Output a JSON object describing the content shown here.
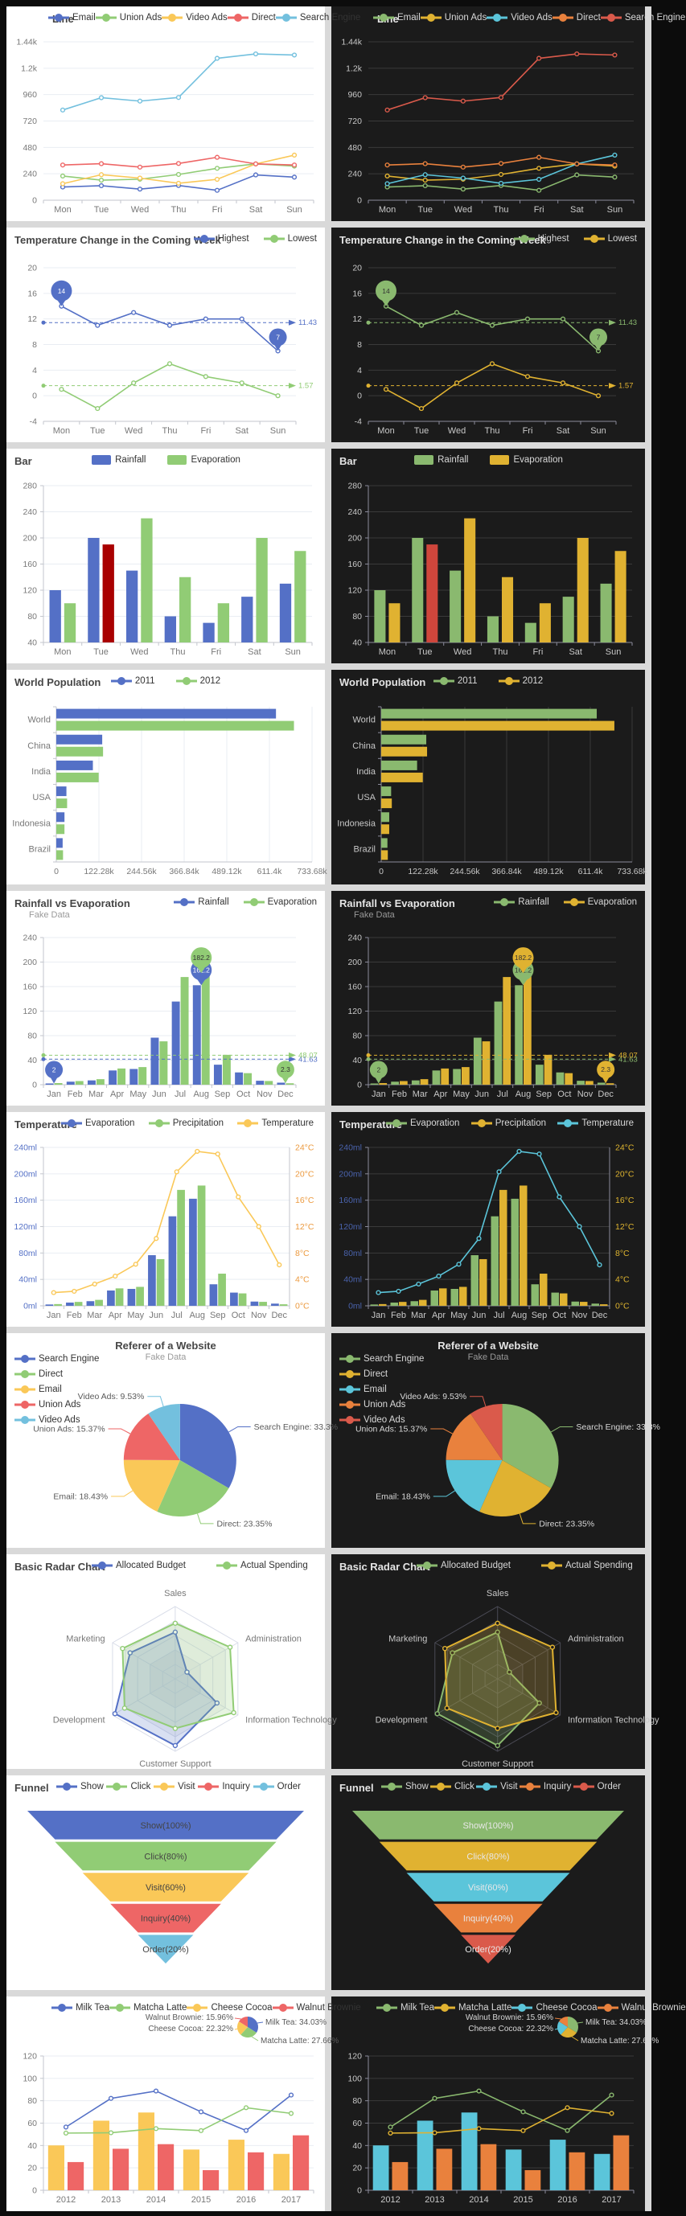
{
  "ui": {
    "page_bg": "#d9d9d9",
    "left_strip": "#0c0c0c",
    "themes": {
      "light": {
        "bg": "#ffffff",
        "title": "#464646",
        "subtitle": "#9a9a9a",
        "legend_text": "#333333",
        "axis_label": "#787878",
        "axis_line": "#c3c6cd",
        "grid": "#e9edf3",
        "pie_label": "#5a5a5a",
        "radar_ring": "#d8dce8",
        "palette": [
          "#5470c6",
          "#91cc75",
          "#fac858",
          "#ee6666",
          "#73c0de"
        ],
        "funnel_label": "#444444"
      },
      "dark": {
        "bg": "#1b1b1b",
        "title": "#e4e4e4",
        "subtitle": "#999999",
        "legend_text": "#d8d8d8",
        "axis_label": "#c8c8c8",
        "axis_line": "#8b8b9b",
        "grid": "#3a3a3a",
        "pie_label": "#d8d8d8",
        "radar_ring": "#4a4a55",
        "palette": [
          "#8ab96f",
          "#e0b231",
          "#5bc5da",
          "#e9813d",
          "#da5a4b"
        ],
        "funnel_label": "#e8e8e8"
      }
    }
  },
  "chart_data": {
    "note": "see charts array"
  },
  "charts": [
    {
      "id": "line",
      "kind": "xy",
      "type": "line",
      "title": "Line",
      "x_labels": [
        "Mon",
        "Tue",
        "Wed",
        "Thu",
        "Fri",
        "Sat",
        "Sun"
      ],
      "y_ticks": {
        "values": [
          0,
          240,
          480,
          720,
          960,
          1200,
          1440
        ],
        "labels": [
          "0",
          "240",
          "480",
          "720",
          "960",
          "1.2k",
          "1.44k"
        ]
      },
      "series": [
        {
          "name": "Email",
          "type": "line",
          "ci": 0,
          "values": [
            120,
            132,
            101,
            134,
            90,
            230,
            210
          ]
        },
        {
          "name": "Union Ads",
          "type": "line",
          "ci": 1,
          "values": [
            220,
            182,
            191,
            234,
            290,
            330,
            310
          ]
        },
        {
          "name": "Video Ads",
          "type": "line",
          "ci": 2,
          "values": [
            150,
            232,
            201,
            154,
            190,
            330,
            410
          ]
        },
        {
          "name": "Direct",
          "type": "line",
          "ci": 3,
          "values": [
            320,
            332,
            301,
            334,
            390,
            330,
            320
          ]
        },
        {
          "name": "Search Engine",
          "type": "line",
          "ci": 4,
          "values": [
            820,
            932,
            901,
            934,
            1290,
            1330,
            1320
          ]
        }
      ]
    },
    {
      "id": "week",
      "kind": "xy",
      "type": "line",
      "title": "Temperature Change in the Coming Week",
      "x_labels": [
        "Mon",
        "Tue",
        "Wed",
        "Thu",
        "Fri",
        "Sat",
        "Sun"
      ],
      "y_ticks": {
        "values": [
          -4,
          0,
          4,
          8,
          12,
          16,
          20
        ],
        "labels": [
          "-4",
          "0",
          "4",
          "8",
          "12",
          "16",
          "20"
        ]
      },
      "series": [
        {
          "name": "Highest",
          "type": "line",
          "ci": 0,
          "values": [
            14,
            11,
            13,
            11,
            12,
            12,
            7
          ],
          "markpoints": [
            {
              "xi": 0,
              "label": "14",
              "kind": "max"
            },
            {
              "xi": 6,
              "label": "7",
              "kind": "min"
            }
          ],
          "markline": {
            "value": 11.43,
            "label": "11.43"
          }
        },
        {
          "name": "Lowest",
          "type": "line",
          "ci": 1,
          "values": [
            1,
            -2,
            2,
            5,
            3,
            2,
            0
          ],
          "markline": {
            "value": 1.57,
            "label": "1.57"
          }
        }
      ]
    },
    {
      "id": "bar",
      "kind": "xy",
      "type": "bar",
      "title": "Bar",
      "x_labels": [
        "Mon",
        "Tue",
        "Wed",
        "Thu",
        "Fri",
        "Sat",
        "Sun"
      ],
      "y_ticks": {
        "values": [
          40,
          80,
          120,
          160,
          200,
          240,
          280
        ],
        "labels": [
          "40",
          "80",
          "120",
          "160",
          "200",
          "240",
          "280"
        ]
      },
      "series": [
        {
          "name": "Rainfall",
          "type": "bar",
          "ci": 0,
          "values": [
            120,
            200,
            150,
            80,
            70,
            110,
            130
          ]
        },
        {
          "name": "Evaporation",
          "type": "bar",
          "ci": 1,
          "values": [
            100,
            190,
            230,
            140,
            100,
            200,
            180
          ],
          "highlight_xi": 1,
          "highlight_color": {
            "light": "#a90000",
            "dark": "#d0463c"
          }
        }
      ]
    },
    {
      "id": "world",
      "kind": "hbar",
      "type": "bar",
      "title": "World Population",
      "categories": [
        "World",
        "China",
        "India",
        "USA",
        "Indonesia",
        "Brazil"
      ],
      "x_ticks": {
        "values": [
          0,
          122280,
          244560,
          366840,
          489120,
          611400,
          733680
        ],
        "labels": [
          "0",
          "122.28k",
          "244.56k",
          "366.84k",
          "489.12k",
          "611.4k",
          "733.68k"
        ]
      },
      "series": [
        {
          "name": "2011",
          "type": "bar",
          "ci": 0,
          "values": [
            630230,
            131744,
            104970,
            29034,
            23489,
            18203
          ]
        },
        {
          "name": "2012",
          "type": "bar",
          "ci": 1,
          "values": [
            681807,
            134141,
            121594,
            31000,
            23438,
            19325
          ]
        }
      ]
    },
    {
      "id": "rain",
      "kind": "xy",
      "type": "bar",
      "title": "Rainfall vs Evaporation",
      "subtitle": "Fake Data",
      "x_labels": [
        "Jan",
        "Feb",
        "Mar",
        "Apr",
        "May",
        "Jun",
        "Jul",
        "Aug",
        "Sep",
        "Oct",
        "Nov",
        "Dec"
      ],
      "y_ticks": {
        "values": [
          0,
          40,
          80,
          120,
          160,
          200,
          240
        ],
        "labels": [
          "0",
          "40",
          "80",
          "120",
          "160",
          "200",
          "240"
        ]
      },
      "series": [
        {
          "name": "Rainfall",
          "type": "bar",
          "ci": 0,
          "values": [
            2.0,
            4.9,
            7.0,
            23.2,
            25.6,
            76.7,
            135.6,
            162.2,
            32.6,
            20.0,
            6.4,
            3.3
          ],
          "markpoints": [
            {
              "xi": 7,
              "label": "162.2",
              "kind": "max"
            },
            {
              "xi": 0,
              "label": "2",
              "kind": "min"
            }
          ],
          "markline": {
            "value": 41.63,
            "label": "41.63"
          }
        },
        {
          "name": "Evaporation",
          "type": "bar",
          "ci": 1,
          "values": [
            2.6,
            5.9,
            9.0,
            26.4,
            28.7,
            70.7,
            175.6,
            182.2,
            48.7,
            18.8,
            6.0,
            2.3
          ],
          "markpoints": [
            {
              "xi": 7,
              "label": "182.2",
              "kind": "max"
            },
            {
              "xi": 11,
              "label": "2.3",
              "kind": "min"
            }
          ],
          "markline": {
            "value": 48.07,
            "label": "48.07"
          }
        }
      ]
    },
    {
      "id": "temp",
      "kind": "xy",
      "type": "mixed",
      "title": "Temperature",
      "x_labels": [
        "Jan",
        "Feb",
        "Mar",
        "Apr",
        "May",
        "Jun",
        "Jul",
        "Aug",
        "Sep",
        "Oct",
        "Nov",
        "Dec"
      ],
      "y_ticks": {
        "values": [
          0,
          40,
          80,
          120,
          160,
          200,
          240
        ],
        "labels": [
          "0ml",
          "40ml",
          "80ml",
          "120ml",
          "160ml",
          "200ml",
          "240ml"
        ]
      },
      "y2_ticks": {
        "values": [
          0,
          4,
          8,
          12,
          16,
          20,
          24
        ],
        "labels": [
          "0°C",
          "4°C",
          "8°C",
          "12°C",
          "16°C",
          "20°C",
          "24°C"
        ]
      },
      "y_label_color": {
        "light": "#5470c6",
        "dark": "#4a63ad"
      },
      "y2_label_color": {
        "light": "#ec9a3f",
        "dark": "#ddb32f"
      },
      "series": [
        {
          "name": "Evaporation",
          "type": "bar",
          "ci": 0,
          "values": [
            2.0,
            4.9,
            7.0,
            23.2,
            25.6,
            76.7,
            135.6,
            162.2,
            32.6,
            20.0,
            6.4,
            3.3
          ]
        },
        {
          "name": "Precipitation",
          "type": "bar",
          "ci": 1,
          "values": [
            2.6,
            5.9,
            9.0,
            26.4,
            28.7,
            70.7,
            175.6,
            182.2,
            48.7,
            18.8,
            6.0,
            2.3
          ]
        },
        {
          "name": "Temperature",
          "type": "line",
          "ci": 2,
          "y2": true,
          "values": [
            2.0,
            2.2,
            3.3,
            4.5,
            6.3,
            10.2,
            20.3,
            23.4,
            23.0,
            16.5,
            12.0,
            6.2
          ]
        }
      ]
    },
    {
      "id": "pie",
      "kind": "pie",
      "type": "pie",
      "title": "Referer of a Website",
      "subtitle": "Fake Data",
      "slices": [
        {
          "name": "Search Engine",
          "pct": 33.3,
          "label": "Search Engine: 33.3%",
          "ci": 0
        },
        {
          "name": "Direct",
          "pct": 23.35,
          "label": "Direct: 23.35%",
          "ci": 1
        },
        {
          "name": "Email",
          "pct": 18.43,
          "label": "Email: 18.43%",
          "ci": 2
        },
        {
          "name": "Union Ads",
          "pct": 15.37,
          "label": "Union Ads: 15.37%",
          "ci": 3
        },
        {
          "name": "Video Ads",
          "pct": 9.53,
          "label": "Video Ads: 9.53%",
          "ci": 4
        }
      ]
    },
    {
      "id": "radar",
      "kind": "radar",
      "type": "radar",
      "title": "Basic Radar Chart",
      "indicators": [
        {
          "name": "Sales",
          "max": 6500
        },
        {
          "name": "Administration",
          "max": 16000
        },
        {
          "name": "Information Technology",
          "max": 30000
        },
        {
          "name": "Customer Support",
          "max": 38000
        },
        {
          "name": "Development",
          "max": 52000
        },
        {
          "name": "Marketing",
          "max": 25000
        }
      ],
      "series": [
        {
          "name": "Allocated Budget",
          "ci": 0,
          "values": [
            4200,
            3000,
            20000,
            35000,
            50000,
            18000
          ]
        },
        {
          "name": "Actual Spending",
          "ci": 1,
          "values": [
            5000,
            14000,
            28000,
            26000,
            42000,
            21000
          ]
        }
      ]
    },
    {
      "id": "funnel",
      "kind": "funnel",
      "type": "funnel",
      "title": "Funnel",
      "bands": [
        {
          "name": "Show",
          "pct": 100,
          "label": "Show(100%)",
          "ci": 0
        },
        {
          "name": "Click",
          "pct": 80,
          "label": "Click(80%)",
          "ci": 1
        },
        {
          "name": "Visit",
          "pct": 60,
          "label": "Visit(60%)",
          "ci": 2
        },
        {
          "name": "Inquiry",
          "pct": 40,
          "label": "Inquiry(40%)",
          "ci": 3
        },
        {
          "name": "Order",
          "pct": 20,
          "label": "Order(20%)",
          "ci": 4
        }
      ]
    },
    {
      "id": "mix",
      "kind": "xy",
      "type": "mixed",
      "title": "",
      "x_labels": [
        "2012",
        "2013",
        "2014",
        "2015",
        "2016",
        "2017"
      ],
      "y_ticks": {
        "values": [
          0,
          20,
          40,
          60,
          80,
          100,
          120
        ],
        "labels": [
          "0",
          "20",
          "40",
          "60",
          "80",
          "100",
          "120"
        ]
      },
      "series": [
        {
          "name": "Milk Tea",
          "type": "line",
          "ci": 0,
          "values": [
            56.5,
            82.1,
            88.7,
            70.1,
            53.4,
            85.1
          ]
        },
        {
          "name": "Matcha Latte",
          "type": "line",
          "ci": 1,
          "values": [
            51.1,
            51.4,
            55.1,
            53.3,
            73.8,
            68.7
          ]
        },
        {
          "name": "Cheese Cocoa",
          "type": "bar",
          "ci": 2,
          "values": [
            40.1,
            62.2,
            69.5,
            36.4,
            45.2,
            32.5
          ]
        },
        {
          "name": "Walnut Brownie",
          "type": "bar",
          "ci": 3,
          "values": [
            25.2,
            37.1,
            41.2,
            18,
            33.9,
            49.1
          ]
        }
      ],
      "mini_pie": {
        "slices": [
          {
            "name": "Milk Tea",
            "pct": 34.03,
            "label": "Milk Tea: 34.03%",
            "ci": 0
          },
          {
            "name": "Matcha Latte",
            "pct": 27.66,
            "label": "Matcha Latte: 27.66%",
            "ci": 1
          },
          {
            "name": "Cheese Cocoa",
            "pct": 22.32,
            "label": "Cheese Cocoa: 22.32%",
            "ci": 2
          },
          {
            "name": "Walnut Brownie",
            "pct": 15.96,
            "label": "Walnut Brownie: 15.96%",
            "ci": 3
          }
        ]
      }
    }
  ]
}
